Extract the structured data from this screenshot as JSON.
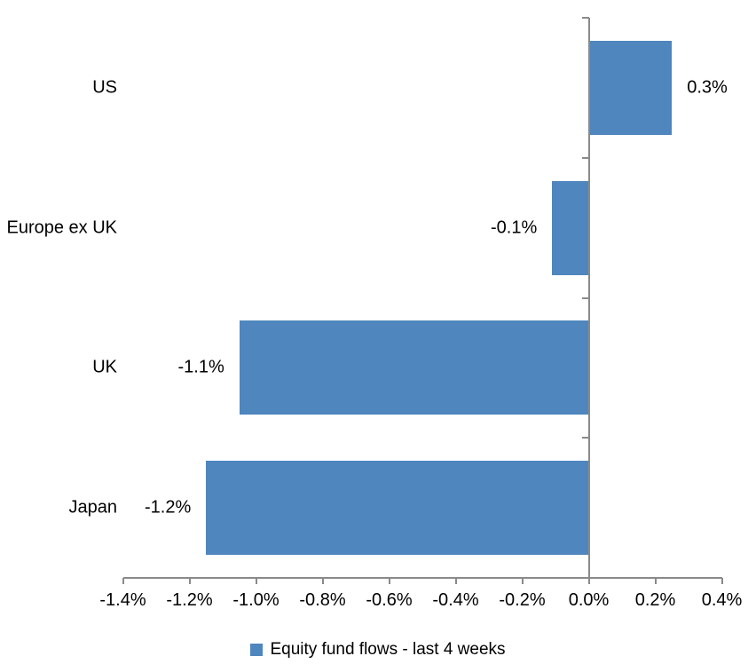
{
  "chart_data": {
    "type": "bar",
    "orientation": "horizontal",
    "title": "",
    "xlabel": "",
    "ylabel": "",
    "categories": [
      "US",
      "Europe ex UK",
      "UK",
      "Japan"
    ],
    "series": [
      {
        "name": "Equity fund flows - last 4 weeks",
        "values": [
          0.3,
          -0.1,
          -1.1,
          -1.2
        ],
        "plot_values": [
          0.25,
          -0.11,
          -1.05,
          -1.15
        ],
        "data_labels": [
          "0.3%",
          "-0.1%",
          "-1.1%",
          "-1.2%"
        ]
      }
    ],
    "x_axis": {
      "range": [
        -1.4,
        0.4
      ],
      "tick_step": 0.2,
      "tick_labels": [
        "-1.4%",
        "-1.2%",
        "-1.0%",
        "-0.8%",
        "-0.6%",
        "-0.4%",
        "-0.2%",
        "0.0%",
        "0.2%",
        "0.4%"
      ],
      "unit": "percent"
    },
    "grid": false,
    "legend": {
      "label": "Equity fund flows - last 4 weeks",
      "position": "bottom"
    },
    "colors": {
      "bar": "#4E86BD",
      "axis": "#8A8A8A",
      "text": "#000000",
      "background": "#FFFFFF"
    }
  }
}
